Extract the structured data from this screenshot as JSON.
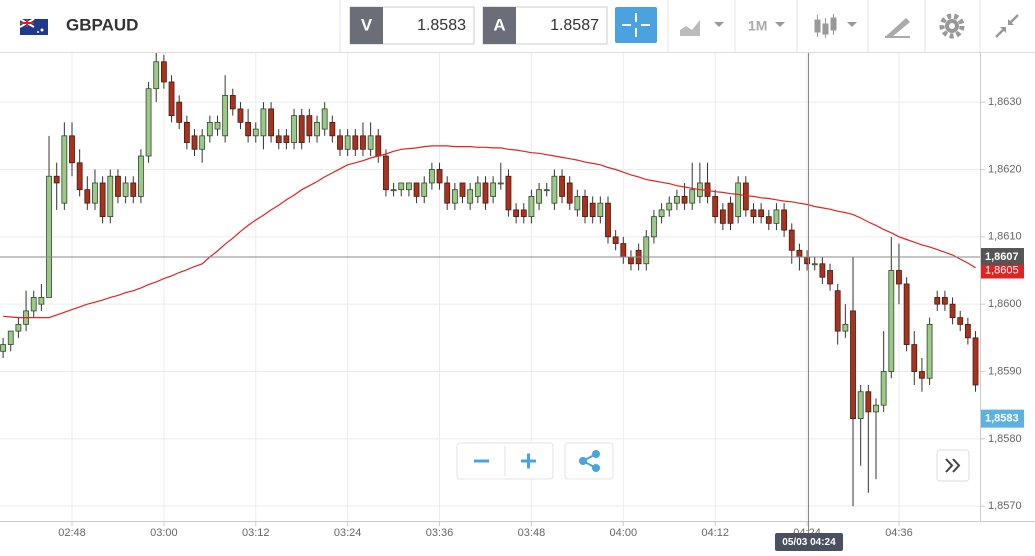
{
  "toolbar": {
    "symbol": "GBPAUD",
    "bid_label": "V",
    "bid": 1.8583,
    "ask_label": "A",
    "ask": 1.8587,
    "timeframe": "1M"
  },
  "chart_data": {
    "type": "candlestick",
    "categories": [
      null,
      null,
      null,
      null,
      null,
      null,
      null,
      null,
      null,
      "02:48",
      null,
      null,
      null,
      null,
      null,
      null,
      null,
      null,
      null,
      null,
      null,
      "03:00",
      null,
      null,
      null,
      null,
      null,
      null,
      null,
      null,
      null,
      null,
      null,
      "03:12",
      null,
      null,
      null,
      null,
      null,
      null,
      null,
      null,
      null,
      null,
      null,
      "03:24",
      null,
      null,
      null,
      null,
      null,
      null,
      null,
      null,
      null,
      null,
      null,
      "03:36",
      null,
      null,
      null,
      null,
      null,
      null,
      null,
      null,
      null,
      null,
      null,
      "03:48",
      null,
      null,
      null,
      null,
      null,
      null,
      null,
      null,
      null,
      null,
      null,
      "04:00",
      null,
      null,
      null,
      null,
      null,
      null,
      null,
      null,
      null,
      null,
      null,
      "04:12",
      null,
      null,
      null,
      null,
      null,
      null,
      null,
      null,
      null,
      null,
      null,
      "04:24",
      null,
      null,
      null,
      null,
      null,
      null,
      null,
      null,
      null,
      null,
      null,
      "04:36",
      null,
      null,
      null,
      null,
      null,
      null,
      null,
      null,
      null,
      null
    ],
    "open": [
      1.8593,
      1.8594,
      1.8596,
      1.8597,
      1.8599,
      1.86,
      1.8601,
      1.8619,
      1.8615,
      1.8625,
      1.8621,
      1.8617,
      1.8615,
      1.8618,
      1.8613,
      1.8619,
      1.8616,
      1.8618,
      1.8616,
      1.8622,
      1.8632,
      1.8636,
      1.8633,
      1.863,
      1.8627,
      1.8625,
      1.8623,
      1.8625,
      1.8626,
      1.8625,
      1.8631,
      1.8629,
      1.8627,
      1.8625,
      1.8625,
      1.8629,
      1.8625,
      1.8625,
      1.8624,
      1.8628,
      1.8628,
      1.8625,
      1.8626,
      1.8627,
      1.8625,
      1.8623,
      1.8625,
      1.8625,
      1.8623,
      1.8625,
      1.8622,
      1.8617,
      1.8617,
      1.8617,
      1.8618,
      1.8616,
      1.8618,
      1.862,
      1.8618,
      1.8615,
      1.8618,
      1.8615,
      1.8616,
      1.8618,
      1.8616,
      1.8618,
      1.8619,
      1.8614,
      1.8614,
      1.8613,
      1.8615,
      1.8617,
      1.8615,
      1.8619,
      1.8618,
      1.8614,
      1.8616,
      1.8615,
      1.8613,
      1.8615,
      1.861,
      1.8609,
      1.8607,
      1.8608,
      1.8606,
      1.861,
      1.8613,
      1.8614,
      1.8615,
      1.8616,
      1.8615,
      1.8616,
      1.8618,
      1.8616,
      1.8614,
      1.8615,
      1.8613,
      1.8618,
      1.8614,
      1.8614,
      1.8613,
      1.8612,
      1.8614,
      1.8611,
      1.8608,
      1.8607,
      1.8606,
      1.8606,
      1.8605,
      1.8602,
      1.8596,
      1.8599,
      1.8583,
      1.8587,
      1.8584,
      1.8585,
      1.859,
      1.8605,
      1.8603,
      1.8594,
      1.859,
      1.8589,
      1.8601,
      1.8601,
      1.86,
      1.8598,
      1.8597,
      1.8595
    ],
    "high": [
      1.8595,
      1.8596,
      1.8598,
      1.8602,
      1.8602,
      1.8603,
      1.8625,
      1.8621,
      1.8627,
      1.8627,
      1.8623,
      1.8619,
      1.862,
      1.8619,
      1.862,
      1.862,
      1.8619,
      1.8619,
      1.8623,
      1.8633,
      1.8638,
      1.8637,
      1.8634,
      1.8631,
      1.8628,
      1.8626,
      1.8626,
      1.8628,
      1.8628,
      1.8634,
      1.8632,
      1.863,
      1.8629,
      1.8627,
      1.863,
      1.863,
      1.8626,
      1.8626,
      1.8629,
      1.8629,
      1.8629,
      1.8628,
      1.863,
      1.8628,
      1.8626,
      1.8626,
      1.8626,
      1.8627,
      1.8627,
      1.8626,
      1.8623,
      1.8618,
      1.8618,
      1.8618,
      1.8618,
      1.8619,
      1.8621,
      1.8621,
      1.8619,
      1.8618,
      1.8618,
      1.8618,
      1.8619,
      1.8619,
      1.8619,
      1.8621,
      1.862,
      1.8615,
      1.8615,
      1.8617,
      1.8618,
      1.8618,
      1.862,
      1.862,
      1.8619,
      1.8617,
      1.8617,
      1.8616,
      1.8616,
      1.8616,
      1.8611,
      1.861,
      1.8608,
      1.8609,
      1.8611,
      1.8614,
      1.8615,
      1.8616,
      1.8617,
      1.8618,
      1.8621,
      1.8621,
      1.8621,
      1.8617,
      1.8615,
      1.8616,
      1.8619,
      1.8619,
      1.8615,
      1.8615,
      1.8614,
      1.8615,
      1.8615,
      1.8612,
      1.8609,
      1.8608,
      1.8607,
      1.8607,
      1.8606,
      1.8603,
      1.86,
      1.8607,
      1.8588,
      1.8588,
      1.8586,
      1.8596,
      1.861,
      1.8609,
      1.8604,
      1.8596,
      1.8592,
      1.8598,
      1.8602,
      1.8602,
      1.8601,
      1.8599,
      1.8598,
      1.8596
    ],
    "low": [
      1.8592,
      1.8593,
      1.8595,
      1.8596,
      1.8598,
      1.8599,
      1.8601,
      1.8614,
      1.8614,
      1.8619,
      1.8616,
      1.8614,
      1.8614,
      1.8612,
      1.8612,
      1.8615,
      1.8615,
      1.8615,
      1.8615,
      1.8621,
      1.863,
      1.8632,
      1.8627,
      1.8626,
      1.8623,
      1.8622,
      1.8621,
      1.8624,
      1.8625,
      1.8624,
      1.8628,
      1.8626,
      1.8624,
      1.8624,
      1.8623,
      1.8624,
      1.8623,
      1.8623,
      1.8623,
      1.8623,
      1.8624,
      1.8624,
      1.8625,
      1.8624,
      1.8622,
      1.8622,
      1.8622,
      1.8622,
      1.8622,
      1.8621,
      1.8616,
      1.8616,
      1.8616,
      1.8616,
      1.8615,
      1.8615,
      1.8617,
      1.8617,
      1.8614,
      1.8614,
      1.8615,
      1.8614,
      1.8615,
      1.8614,
      1.8615,
      1.8617,
      1.8613,
      1.8612,
      1.8612,
      1.8612,
      1.8614,
      1.8616,
      1.8614,
      1.8615,
      1.8614,
      1.8613,
      1.8612,
      1.8612,
      1.8612,
      1.8609,
      1.8608,
      1.8606,
      1.8605,
      1.8605,
      1.8605,
      1.8609,
      1.8612,
      1.8613,
      1.8614,
      1.8614,
      1.8614,
      1.8615,
      1.8615,
      1.8612,
      1.8611,
      1.8611,
      1.8612,
      1.8613,
      1.8612,
      1.8612,
      1.8611,
      1.8611,
      1.861,
      1.8606,
      1.8605,
      1.8605,
      1.8605,
      1.8603,
      1.8602,
      1.8594,
      1.8595,
      1.857,
      1.8576,
      1.8572,
      1.8574,
      1.8584,
      1.8589,
      1.86,
      1.8593,
      1.8588,
      1.8587,
      1.8588,
      1.8599,
      1.8599,
      1.8597,
      1.8596,
      1.8594,
      1.8587
    ],
    "close": [
      1.8594,
      1.8596,
      1.8597,
      1.8599,
      1.8601,
      1.8601,
      1.8619,
      1.8618,
      1.8625,
      1.8621,
      1.8617,
      1.8615,
      1.8618,
      1.8613,
      1.8619,
      1.8616,
      1.8618,
      1.8616,
      1.8622,
      1.8632,
      1.8636,
      1.8633,
      1.8628,
      1.8627,
      1.8624,
      1.8623,
      1.8625,
      1.8627,
      1.8627,
      1.8631,
      1.8629,
      1.8627,
      1.8625,
      1.8626,
      1.8629,
      1.8625,
      1.8624,
      1.8624,
      1.8628,
      1.8624,
      1.8625,
      1.8627,
      1.8629,
      1.8625,
      1.8623,
      1.8625,
      1.8623,
      1.8623,
      1.8625,
      1.8622,
      1.8617,
      1.8617,
      1.8618,
      1.8618,
      1.8616,
      1.8618,
      1.862,
      1.8618,
      1.8615,
      1.8617,
      1.8616,
      1.8617,
      1.8618,
      1.8615,
      1.8618,
      1.8618,
      1.8614,
      1.8613,
      1.8613,
      1.8616,
      1.8617,
      1.8617,
      1.8619,
      1.8616,
      1.8615,
      1.8616,
      1.8613,
      1.8613,
      1.8615,
      1.861,
      1.8609,
      1.8607,
      1.8606,
      1.8606,
      1.861,
      1.8613,
      1.8614,
      1.8615,
      1.8616,
      1.8615,
      1.8617,
      1.8618,
      1.8616,
      1.8613,
      1.8612,
      1.8612,
      1.8618,
      1.8614,
      1.8613,
      1.8613,
      1.8612,
      1.8614,
      1.8611,
      1.8608,
      1.8607,
      1.8606,
      1.8606,
      1.8604,
      1.8603,
      1.8596,
      1.8597,
      1.8583,
      1.8587,
      1.8584,
      1.8585,
      1.859,
      1.8605,
      1.8603,
      1.8594,
      1.859,
      1.8589,
      1.8597,
      1.86,
      1.86,
      1.8598,
      1.8597,
      1.8595,
      1.8588
    ],
    "up_color": "#9cc98a",
    "down_color": "#a8321e",
    "ma": {
      "color": "#e02424",
      "values": [
        1.85982,
        1.85981,
        1.8598,
        1.8598,
        1.8598,
        1.8598,
        1.8598,
        1.85984,
        1.85988,
        1.85992,
        1.85996,
        1.86,
        1.86003,
        1.86006,
        1.8601,
        1.86013,
        1.86017,
        1.8602,
        1.86024,
        1.86029,
        1.86033,
        1.86038,
        1.86042,
        1.86047,
        1.86051,
        1.86056,
        1.8606,
        1.8607,
        1.86079,
        1.86089,
        1.86098,
        1.86108,
        1.86117,
        1.86125,
        1.86132,
        1.8614,
        1.86147,
        1.86155,
        1.86162,
        1.8617,
        1.86176,
        1.86182,
        1.86189,
        1.86195,
        1.86201,
        1.86207,
        1.8621,
        1.86213,
        1.86217,
        1.8622,
        1.86223,
        1.86227,
        1.8623,
        1.86231,
        1.86232,
        1.86234,
        1.86235,
        1.86235,
        1.86235,
        1.86234,
        1.86234,
        1.86234,
        1.86233,
        1.86233,
        1.86232,
        1.86232,
        1.8623,
        1.86229,
        1.86227,
        1.86225,
        1.86224,
        1.86222,
        1.8622,
        1.86218,
        1.86216,
        1.86214,
        1.86211,
        1.86209,
        1.86207,
        1.86203,
        1.862,
        1.86196,
        1.86192,
        1.86189,
        1.86185,
        1.86183,
        1.86181,
        1.86179,
        1.86176,
        1.86174,
        1.86172,
        1.8617,
        1.86169,
        1.86167,
        1.86166,
        1.86164,
        1.86163,
        1.86161,
        1.8616,
        1.86158,
        1.86157,
        1.86155,
        1.86153,
        1.86152,
        1.8615,
        1.86148,
        1.86145,
        1.86143,
        1.86141,
        1.86138,
        1.86136,
        1.86133,
        1.86128,
        1.86122,
        1.86117,
        1.86111,
        1.86106,
        1.861,
        1.86096,
        1.86092,
        1.86088,
        1.86085,
        1.86081,
        1.86077,
        1.86073,
        1.86067,
        1.86061,
        1.86054
      ]
    },
    "ylim": [
      1.85678,
      1.86373
    ],
    "yticks": [
      {
        "value": 1.857,
        "label": "1,8570"
      },
      {
        "value": 1.858,
        "label": "1,8580"
      },
      {
        "value": 1.859,
        "label": "1,8590"
      },
      {
        "value": 1.86,
        "label": "1,8600"
      },
      {
        "value": 1.861,
        "label": "1,8610"
      },
      {
        "value": 1.862,
        "label": "1,8620"
      },
      {
        "value": 1.863,
        "label": "1,8630"
      }
    ],
    "grid": true,
    "ma_last": {
      "value": 1.8605,
      "label": "1,8605"
    },
    "crosshair": {
      "x_label": "05/03 04:24",
      "y": {
        "value": 1.8607,
        "label": "1,8607"
      }
    },
    "price_line": {
      "value": 1.8583,
      "label": "1,8583"
    }
  }
}
